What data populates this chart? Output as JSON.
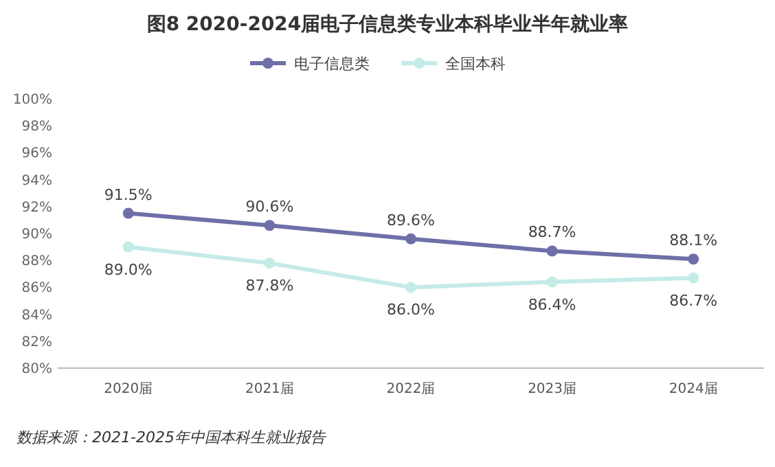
{
  "chart_data": {
    "type": "line",
    "title": "图8  2020-2024届电子信息类专业本科毕业半年就业率",
    "categories": [
      "2020届",
      "2021届",
      "2022届",
      "2023届",
      "2024届"
    ],
    "series": [
      {
        "name": "电子信息类",
        "color": "#6f6fa8",
        "values": [
          91.5,
          90.6,
          89.6,
          88.7,
          88.1
        ],
        "value_labels": [
          "91.5%",
          "90.6%",
          "89.6%",
          "88.7%",
          "88.1%"
        ]
      },
      {
        "name": "全国本科",
        "color": "#c4ebe7",
        "values": [
          89.0,
          87.8,
          86.0,
          86.4,
          86.7
        ],
        "value_labels": [
          "89.0%",
          "87.8%",
          "86.0%",
          "86.4%",
          "86.7%"
        ]
      }
    ],
    "ylim": [
      80,
      100
    ],
    "yticks": [
      {
        "value": 80,
        "label": "80%"
      },
      {
        "value": 82,
        "label": "82%"
      },
      {
        "value": 84,
        "label": "84%"
      },
      {
        "value": 86,
        "label": "86%"
      },
      {
        "value": 88,
        "label": "88%"
      },
      {
        "value": 90,
        "label": "90%"
      },
      {
        "value": 92,
        "label": "92%"
      },
      {
        "value": 94,
        "label": "94%"
      },
      {
        "value": 96,
        "label": "96%"
      },
      {
        "value": 98,
        "label": "98%"
      },
      {
        "value": 100,
        "label": "100%"
      }
    ],
    "legend": "top",
    "marker": "circle",
    "line_style": "solid",
    "annotations": [
      "数据来源：2021-2025年中国本科生就业报告"
    ]
  }
}
